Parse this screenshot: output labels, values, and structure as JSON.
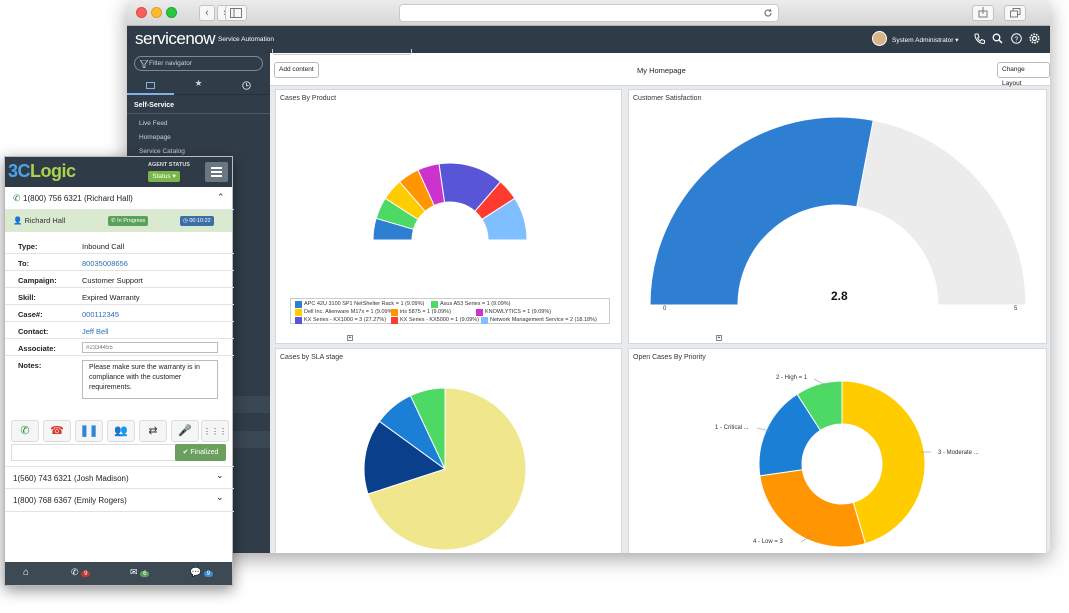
{
  "browser": {
    "back": "‹",
    "forward": "›"
  },
  "header": {
    "logo": "servicenow",
    "product": "Service Automation",
    "user": "System Administrator"
  },
  "sidebar": {
    "filter_placeholder": "Filter navigator",
    "section": "Self-Service",
    "items": [
      "Live Feed",
      "Homepage",
      "Service Catalog"
    ]
  },
  "content": {
    "add_content": "Add content",
    "title": "My Homepage",
    "change_layout": "Change Layout"
  },
  "charts": {
    "product_title": "Cases By Product",
    "satisfaction_title": "Customer Satisfaction",
    "sla_title": "Cases by SLA stage",
    "priority_title": "Open Cases By Priority"
  },
  "chart_data": [
    {
      "type": "pie",
      "title": "Cases By Product",
      "shape": "semi-donut",
      "series": [
        {
          "name": "APC 42U 3100 SP1 NetShelter Rack = 1 (9.09%)",
          "value": 1,
          "color": "#2e7fd1"
        },
        {
          "name": "Asus A53 Series = 1 (9.09%)",
          "value": 1,
          "color": "#4cd964"
        },
        {
          "name": "Dell Inc. Alienware M17x = 1 (9.09%)",
          "value": 1,
          "color": "#ffcc00"
        },
        {
          "name": "iris 5875 = 1 (9.09%)",
          "value": 1,
          "color": "#ff9500"
        },
        {
          "name": "KNOWLYTICS = 1 (9.09%)",
          "value": 1,
          "color": "#cc33cc"
        },
        {
          "name": "KX Series - KX1000 = 3 (27.27%)",
          "value": 3,
          "color": "#5856d6"
        },
        {
          "name": "KX Series - KX5000 = 1 (9.09%)",
          "value": 1,
          "color": "#ff3b30"
        },
        {
          "name": "Network Management Service = 2 (18.18%)",
          "value": 2,
          "color": "#7fbfff"
        }
      ]
    },
    {
      "type": "gauge",
      "title": "Customer Satisfaction",
      "value": 2.8,
      "min": 0,
      "max": 5,
      "value_label": "2.8",
      "min_label": "0",
      "max_label": "5"
    },
    {
      "type": "pie",
      "title": "Cases by SLA stage",
      "values": [
        {
          "value": 0.7,
          "color": "#f0e68c"
        },
        {
          "value": 0.15,
          "color": "#0a3f8c"
        },
        {
          "value": 0.08,
          "color": "#1c7fd6"
        },
        {
          "value": 0.07,
          "color": "#4cd964"
        }
      ]
    },
    {
      "type": "pie",
      "title": "Open Cases By Priority",
      "shape": "donut",
      "series": [
        {
          "name": "3 - Moderate ...",
          "value": 5,
          "color": "#ffcc00"
        },
        {
          "name": "4 - Low = 3",
          "value": 3,
          "color": "#ff9500"
        },
        {
          "name": "1 - Critical ...",
          "value": 2,
          "color": "#1c7fd6"
        },
        {
          "name": "2 - High = 1",
          "value": 1,
          "color": "#4cd964"
        }
      ]
    }
  ],
  "widget": {
    "brand_a": "3C",
    "brand_b": "Logic",
    "agent_status_label": "AGENT STATUS",
    "status_button": "Status",
    "active_call": "1(800) 756 6321 (Richard Hall)",
    "caller": "Richard Hall",
    "call_state": "In Progress",
    "timer": "00:10:22",
    "fields": [
      {
        "label": "Type:",
        "value": "Inbound Call",
        "link": false
      },
      {
        "label": "To:",
        "value": "80035008656",
        "link": true
      },
      {
        "label": "Campaign:",
        "value": "Customer Support",
        "link": false
      },
      {
        "label": "Skill:",
        "value": "Expired Warranty",
        "link": false
      },
      {
        "label": "Case#:",
        "value": "000112345",
        "link": true
      },
      {
        "label": "Contact:",
        "value": "Jeff Bell",
        "link": true
      }
    ],
    "associate_label": "Associate:",
    "associate_placeholder": "#2334455",
    "notes_label": "Notes:",
    "notes": "Please make sure the warranty is in compliance with the customer requirements.",
    "finalized": "Finalized",
    "other_calls": [
      "1(560) 743 6321 (Josh Madison)",
      "1(800) 768 6367 (Emily Rogers)"
    ],
    "footer": {
      "calls_badge": "9",
      "mail_badge": "6",
      "chat_badge": "9"
    }
  }
}
